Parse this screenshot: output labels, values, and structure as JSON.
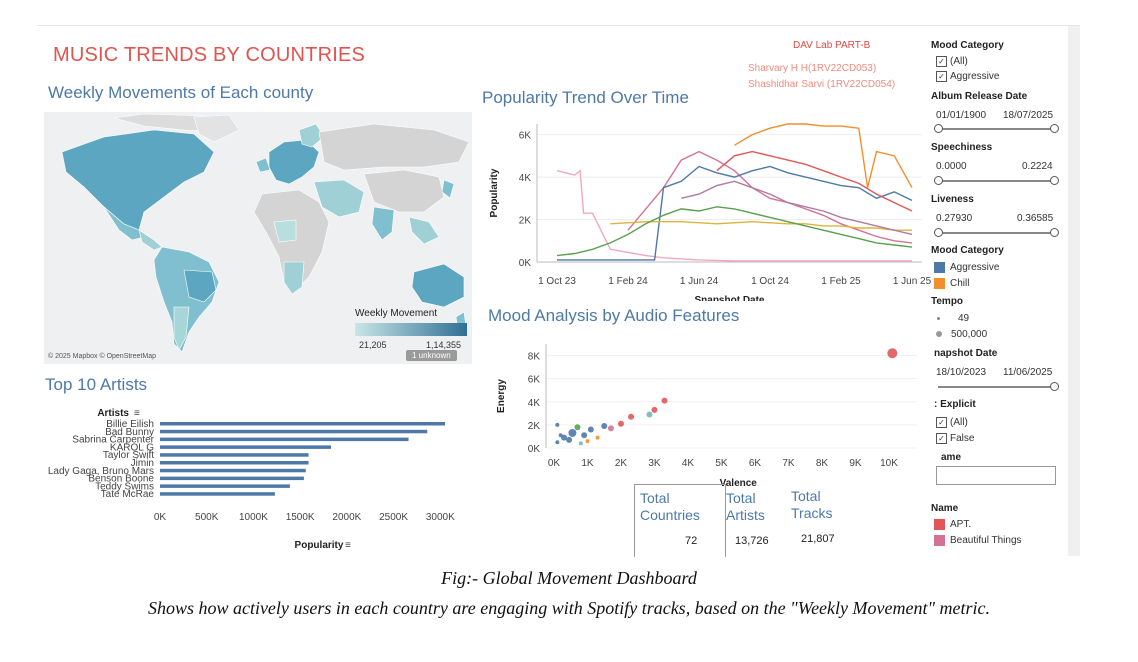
{
  "dashboard": {
    "title": "MUSIC TRENDS BY COUNTRIES",
    "lab": "DAV Lab PART-B",
    "authors": [
      "Sharvary H H(1RV22CD053)",
      "Shashidhar Sarvi (1RV22CD054)"
    ]
  },
  "map": {
    "title": "Weekly Movements of Each county",
    "attribution": "© 2025 Mapbox © OpenStreetMap",
    "legend_title": "Weekly Movement",
    "legend_min": "21,205",
    "legend_max": "1,14,355",
    "unknown": "1 unknown",
    "colors": {
      "low": "#c9e6e6",
      "high": "#2f6f94"
    }
  },
  "sidebar": {
    "mood_filter_title": "Mood Category",
    "mood_filter_options": [
      "(All)",
      "Aggressive"
    ],
    "album_title": "Album Release Date",
    "album_min": "01/01/1900",
    "album_max": "18/07/2025",
    "speech_title": "Speechiness",
    "speech_min": "0.0000",
    "speech_max": "0.2224",
    "live_title": "Liveness",
    "live_min": "0.27930",
    "live_max": "0.36585",
    "mood_legend_title": "Mood Category",
    "mood_legend": [
      {
        "label": "Aggressive",
        "color": "#4e79a7"
      },
      {
        "label": "Chill",
        "color": "#f28e2b"
      }
    ],
    "tempo_title": "Tempo",
    "tempo_values": [
      "49",
      "500,000"
    ],
    "snapshot_title": "napshot Date",
    "snapshot_min": "18/10/2023",
    "snapshot_max": "11/06/2025",
    "explicit_title": ": Explicit",
    "explicit_options": [
      "(All)",
      "False"
    ],
    "name_search_title": "ame",
    "name_legend_title": "Name",
    "name_legend": [
      {
        "label": "APT.",
        "color": "#e15759"
      },
      {
        "label": "Beautiful Things",
        "color": "#d37295"
      }
    ]
  },
  "kpis": [
    {
      "label": "Total Countries",
      "value": "72"
    },
    {
      "label": "Total Artists",
      "value": "13,726"
    },
    {
      "label": "Total Tracks",
      "value": "21,807"
    }
  ],
  "captions": {
    "fig": "Fig:- Global Movement Dashboard",
    "desc": "Shows how actively users in each country are engaging with Spotify tracks, based on the \"Weekly Movement\" metric."
  },
  "chart_data": [
    {
      "type": "line",
      "title": "Popularity Trend Over Time",
      "xlabel": "Snapshot Date",
      "ylabel": "Popularity",
      "x_ticks": [
        "1 Oct 23",
        "1 Feb 24",
        "1 Jun 24",
        "1 Oct 24",
        "1 Feb 25",
        "1 Jun 25"
      ],
      "y_ticks": [
        "0K",
        "2K",
        "4K",
        "6K"
      ],
      "ylim": [
        0,
        6500
      ],
      "series": [
        {
          "color": "#f4a6c0",
          "values": [
            [
              0,
              4300
            ],
            [
              1,
              4100
            ],
            [
              1.3,
              4300
            ],
            [
              1.5,
              2300
            ],
            [
              2,
              2300
            ],
            [
              3,
              600
            ],
            [
              5,
              300
            ],
            [
              6,
              200
            ],
            [
              8,
              100
            ],
            [
              10,
              50
            ],
            [
              12,
              50
            ],
            [
              16,
              50
            ],
            [
              20,
              50
            ]
          ]
        },
        {
          "color": "#d37295",
          "values": [
            [
              4,
              1500
            ],
            [
              5,
              2500
            ],
            [
              6,
              3500
            ],
            [
              7,
              4800
            ],
            [
              8,
              5200
            ],
            [
              9,
              4800
            ],
            [
              10,
              4300
            ],
            [
              11,
              3500
            ],
            [
              12,
              3000
            ],
            [
              13,
              2800
            ],
            [
              14,
              2500
            ],
            [
              15,
              2200
            ],
            [
              16,
              1800
            ],
            [
              17,
              1500
            ],
            [
              18,
              1200
            ],
            [
              19,
              1000
            ],
            [
              20,
              900
            ]
          ]
        },
        {
          "color": "#4e79a7",
          "values": [
            [
              0,
              100
            ],
            [
              1,
              100
            ],
            [
              2,
              100
            ],
            [
              3,
              100
            ],
            [
              4,
              100
            ],
            [
              5,
              100
            ],
            [
              5.5,
              100
            ],
            [
              6,
              3500
            ],
            [
              7,
              3800
            ],
            [
              8,
              4500
            ],
            [
              9,
              4200
            ],
            [
              10,
              4000
            ],
            [
              11,
              4300
            ],
            [
              12,
              4500
            ],
            [
              13,
              4200
            ],
            [
              14,
              4000
            ],
            [
              15,
              3800
            ],
            [
              16,
              3600
            ],
            [
              17,
              3500
            ],
            [
              18,
              3000
            ],
            [
              19,
              3300
            ],
            [
              20,
              2900
            ]
          ]
        },
        {
          "color": "#e1b33a",
          "values": [
            [
              3,
              1800
            ],
            [
              5,
              1900
            ],
            [
              7,
              1900
            ],
            [
              9,
              1800
            ],
            [
              11,
              1900
            ],
            [
              13,
              1800
            ],
            [
              14,
              1800
            ],
            [
              15,
              1700
            ],
            [
              16,
              1700
            ],
            [
              17,
              1600
            ],
            [
              18,
              1600
            ],
            [
              19,
              1500
            ],
            [
              20,
              1500
            ]
          ]
        },
        {
          "color": "#59a14f",
          "values": [
            [
              0,
              300
            ],
            [
              1,
              400
            ],
            [
              2,
              600
            ],
            [
              3,
              900
            ],
            [
              4,
              1300
            ],
            [
              5,
              1800
            ],
            [
              6,
              2200
            ],
            [
              7,
              2500
            ],
            [
              8,
              2400
            ],
            [
              9,
              2600
            ],
            [
              10,
              2500
            ],
            [
              11,
              2300
            ],
            [
              12,
              2100
            ],
            [
              13,
              1900
            ],
            [
              14,
              1700
            ],
            [
              15,
              1500
            ],
            [
              16,
              1300
            ],
            [
              17,
              1100
            ],
            [
              18,
              900
            ],
            [
              19,
              800
            ],
            [
              20,
              700
            ]
          ]
        },
        {
          "color": "#f28e2b",
          "values": [
            [
              10,
              5500
            ],
            [
              11,
              6000
            ],
            [
              12,
              6300
            ],
            [
              13,
              6500
            ],
            [
              14,
              6500
            ],
            [
              15,
              6400
            ],
            [
              16,
              6400
            ],
            [
              17,
              6300
            ],
            [
              17.5,
              3500
            ],
            [
              18,
              5200
            ],
            [
              19,
              5000
            ],
            [
              20,
              3500
            ]
          ]
        },
        {
          "color": "#e15759",
          "values": [
            [
              9,
              4300
            ],
            [
              10,
              5000
            ],
            [
              11,
              5200
            ],
            [
              12,
              5000
            ],
            [
              13,
              4800
            ],
            [
              14,
              4600
            ],
            [
              15,
              4300
            ],
            [
              16,
              4000
            ],
            [
              17,
              3700
            ],
            [
              18,
              3200
            ],
            [
              19,
              2800
            ],
            [
              20,
              2400
            ]
          ]
        },
        {
          "color": "#b07aa1",
          "values": [
            [
              7,
              3000
            ],
            [
              8,
              3200
            ],
            [
              9,
              3600
            ],
            [
              10,
              3800
            ],
            [
              11,
              3500
            ],
            [
              12,
              3200
            ],
            [
              13,
              2800
            ],
            [
              14,
              2600
            ],
            [
              15,
              2400
            ],
            [
              16,
              2100
            ],
            [
              17,
              1900
            ],
            [
              18,
              1700
            ],
            [
              19,
              1500
            ],
            [
              20,
              1300
            ]
          ]
        }
      ]
    },
    {
      "type": "scatter",
      "title": "Mood Analysis by Audio Features",
      "xlabel": "Valence",
      "ylabel": "Energy",
      "x_ticks": [
        "0K",
        "1K",
        "2K",
        "3K",
        "4K",
        "5K",
        "6K",
        "7K",
        "8K",
        "9K",
        "10K"
      ],
      "y_ticks": [
        "0K",
        "2K",
        "4K",
        "6K",
        "8K"
      ],
      "xlim": [
        0,
        10000
      ],
      "ylim": [
        0,
        9000
      ],
      "points": [
        {
          "x": 10100,
          "y": 8200,
          "r": 5,
          "color": "#e15759"
        },
        {
          "x": 3300,
          "y": 4100,
          "r": 3,
          "color": "#e15759"
        },
        {
          "x": 3000,
          "y": 3300,
          "r": 3,
          "color": "#e15759"
        },
        {
          "x": 2850,
          "y": 2900,
          "r": 3,
          "color": "#76b7b2"
        },
        {
          "x": 2300,
          "y": 2700,
          "r": 3,
          "color": "#e15759"
        },
        {
          "x": 2000,
          "y": 2100,
          "r": 3,
          "color": "#e15759"
        },
        {
          "x": 1700,
          "y": 1700,
          "r": 3,
          "color": "#d37295"
        },
        {
          "x": 1500,
          "y": 1900,
          "r": 3,
          "color": "#4e79a7"
        },
        {
          "x": 1100,
          "y": 1600,
          "r": 3,
          "color": "#4e79a7"
        },
        {
          "x": 900,
          "y": 1100,
          "r": 3,
          "color": "#4e79a7"
        },
        {
          "x": 700,
          "y": 1800,
          "r": 3,
          "color": "#59a14f"
        },
        {
          "x": 550,
          "y": 1300,
          "r": 4,
          "color": "#4e79a7"
        },
        {
          "x": 450,
          "y": 700,
          "r": 3,
          "color": "#4e79a7"
        },
        {
          "x": 300,
          "y": 900,
          "r": 3,
          "color": "#4e79a7"
        },
        {
          "x": 200,
          "y": 1100,
          "r": 2,
          "color": "#4e79a7"
        },
        {
          "x": 100,
          "y": 500,
          "r": 2,
          "color": "#4e79a7"
        },
        {
          "x": 100,
          "y": 2000,
          "r": 2,
          "color": "#4e79a7"
        },
        {
          "x": 1300,
          "y": 900,
          "r": 2,
          "color": "#f28e2b"
        },
        {
          "x": 800,
          "y": 400,
          "r": 2,
          "color": "#76b7b2"
        },
        {
          "x": 1000,
          "y": 600,
          "r": 2,
          "color": "#f28e2b"
        }
      ]
    },
    {
      "type": "bar",
      "title": "Top 10 Artists",
      "xlabel": "Popularity",
      "ylabel": "Artists",
      "categories": [
        "Billie Eilish",
        "Bad Bunny",
        "Sabrina Carpenter",
        "KAROL G",
        "Taylor Swift",
        "Jimin",
        "Lady Gaga, Bruno Mars",
        "Benson Boone",
        "Teddy Swims",
        "Tate McRae"
      ],
      "values": [
        3050000,
        2860000,
        2660000,
        1830000,
        1590000,
        1590000,
        1560000,
        1540000,
        1390000,
        1230000
      ],
      "x_ticks": [
        "0K",
        "500K",
        "1000K",
        "1500K",
        "2000K",
        "2500K",
        "3000K"
      ],
      "xlim": [
        0,
        3200000
      ],
      "color": "#4e79a7"
    }
  ]
}
